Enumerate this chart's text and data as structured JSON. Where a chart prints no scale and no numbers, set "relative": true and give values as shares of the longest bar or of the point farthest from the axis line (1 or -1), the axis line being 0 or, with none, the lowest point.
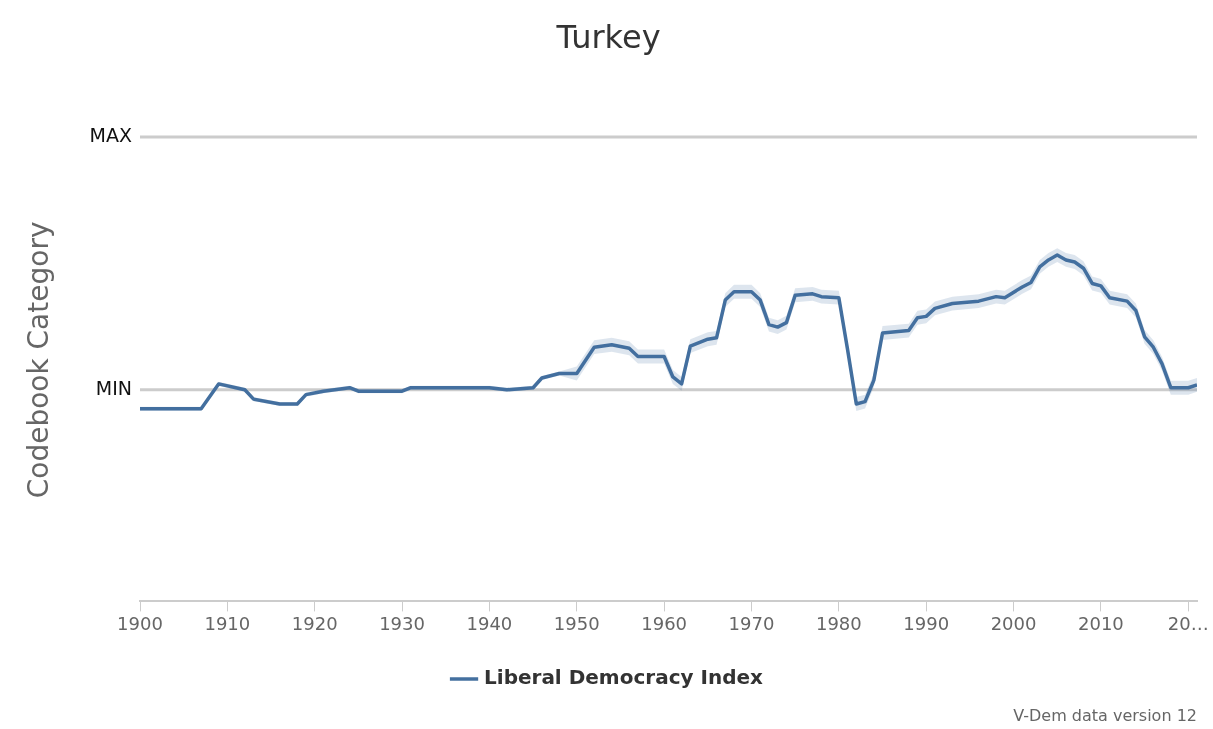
{
  "chart_data": {
    "type": "line",
    "title": "Turkey",
    "ylabel": "Codebook Category",
    "relative": true,
    "x": [
      1900,
      1907,
      1909,
      1912,
      1913,
      1916,
      1918,
      1919,
      1921,
      1924,
      1925,
      1930,
      1931,
      1940,
      1942,
      1945,
      1946,
      1948,
      1950,
      1952,
      1954,
      1956,
      1957,
      1960,
      1961,
      1962,
      1963,
      1965,
      1966,
      1967,
      1968,
      1970,
      1971,
      1972,
      1973,
      1974,
      1975,
      1977,
      1978,
      1980,
      1981,
      1982,
      1983,
      1984,
      1985,
      1988,
      1989,
      1990,
      1991,
      1993,
      1996,
      1998,
      1999,
      2001,
      2002,
      2003,
      2004,
      2005,
      2006,
      2007,
      2008,
      2009,
      2010,
      2011,
      2013,
      2014,
      2015,
      2016,
      2017,
      2018,
      2020,
      2021
    ],
    "series": [
      {
        "name": "Liberal Democracy Index",
        "color": "#44709f",
        "values": [
          0.556,
          0.556,
          0.628,
          0.611,
          0.584,
          0.57,
          0.57,
          0.597,
          0.607,
          0.617,
          0.607,
          0.607,
          0.617,
          0.617,
          0.611,
          0.617,
          0.645,
          0.658,
          0.658,
          0.734,
          0.741,
          0.731,
          0.707,
          0.707,
          0.648,
          0.628,
          0.737,
          0.757,
          0.761,
          0.87,
          0.894,
          0.894,
          0.87,
          0.799,
          0.792,
          0.805,
          0.884,
          0.888,
          0.88,
          0.877,
          0.727,
          0.57,
          0.577,
          0.638,
          0.775,
          0.782,
          0.819,
          0.823,
          0.846,
          0.86,
          0.867,
          0.88,
          0.877,
          0.908,
          0.921,
          0.966,
          0.986,
          1,
          0.986,
          0.98,
          0.962,
          0.918,
          0.911,
          0.877,
          0.867,
          0.84,
          0.764,
          0.734,
          0.686,
          0.617,
          0.617,
          0.625
        ],
        "lower": [
          0.55,
          0.55,
          0.622,
          0.605,
          0.578,
          0.564,
          0.564,
          0.591,
          0.601,
          0.611,
          0.601,
          0.601,
          0.611,
          0.611,
          0.605,
          0.611,
          0.639,
          0.652,
          0.638,
          0.714,
          0.721,
          0.711,
          0.687,
          0.687,
          0.628,
          0.608,
          0.717,
          0.737,
          0.741,
          0.85,
          0.874,
          0.874,
          0.85,
          0.779,
          0.772,
          0.785,
          0.864,
          0.868,
          0.86,
          0.857,
          0.707,
          0.55,
          0.557,
          0.618,
          0.755,
          0.762,
          0.799,
          0.803,
          0.826,
          0.84,
          0.847,
          0.86,
          0.857,
          0.888,
          0.901,
          0.946,
          0.966,
          0.98,
          0.966,
          0.96,
          0.942,
          0.898,
          0.891,
          0.857,
          0.847,
          0.82,
          0.744,
          0.714,
          0.666,
          0.597,
          0.597,
          0.605
        ],
        "upper": [
          0.562,
          0.562,
          0.634,
          0.617,
          0.59,
          0.576,
          0.576,
          0.603,
          0.613,
          0.623,
          0.613,
          0.613,
          0.623,
          0.623,
          0.617,
          0.623,
          0.651,
          0.664,
          0.678,
          0.754,
          0.761,
          0.751,
          0.727,
          0.727,
          0.668,
          0.648,
          0.757,
          0.777,
          0.781,
          0.89,
          0.914,
          0.914,
          0.89,
          0.819,
          0.812,
          0.825,
          0.904,
          0.908,
          0.9,
          0.897,
          0.747,
          0.59,
          0.597,
          0.658,
          0.795,
          0.802,
          0.839,
          0.843,
          0.866,
          0.88,
          0.887,
          0.9,
          0.897,
          0.928,
          0.941,
          0.986,
          1.006,
          1.02,
          1.006,
          1.0,
          0.982,
          0.938,
          0.931,
          0.897,
          0.887,
          0.86,
          0.784,
          0.754,
          0.706,
          0.637,
          0.637,
          0.645
        ]
      }
    ],
    "xlim": [
      1900,
      2021
    ],
    "xticks": [
      1900,
      1910,
      1920,
      1930,
      1940,
      1950,
      1960,
      1970,
      1980,
      1990,
      2000,
      2010,
      {
        "value": 2020,
        "label": "20…"
      }
    ],
    "ref_lines": [
      {
        "axis": "y",
        "value": 0.611,
        "label": "MIN",
        "color": "#cccccc"
      },
      {
        "axis": "y",
        "value": 1.341,
        "label": "MAX",
        "color": "#cccccc"
      }
    ],
    "legend": "bottom",
    "marker": "none",
    "line_style": "solid",
    "annotations": [
      "V-Dem data version 12"
    ]
  }
}
